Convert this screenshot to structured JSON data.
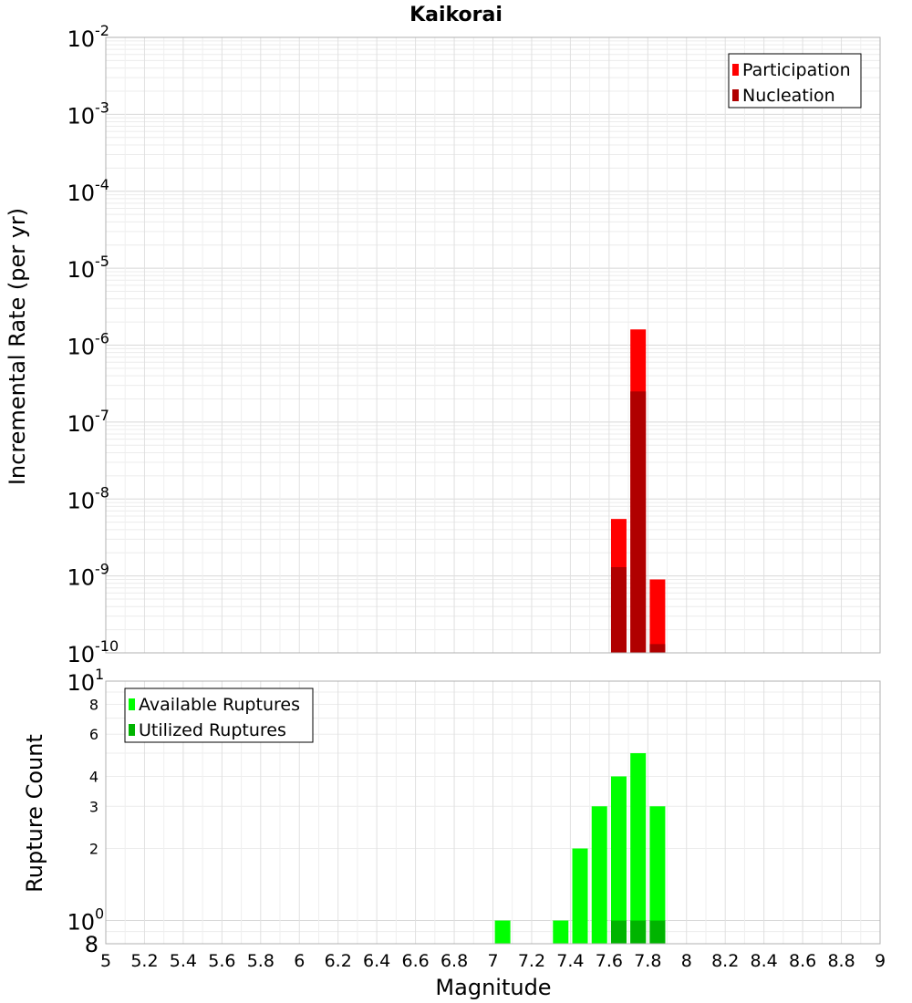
{
  "chart_data": [
    {
      "type": "bar",
      "title": "Kaikorai",
      "xlabel": "",
      "ylabel": "Incremental Rate (per yr)",
      "yscale": "log",
      "xlim": [
        5,
        9
      ],
      "ylim": [
        1e-10,
        0.01
      ],
      "y_major_ticks": [
        {
          "base": "10",
          "exp": "-10"
        },
        {
          "base": "10",
          "exp": "-9"
        },
        {
          "base": "10",
          "exp": "-8"
        },
        {
          "base": "10",
          "exp": "-7"
        },
        {
          "base": "10",
          "exp": "-6"
        },
        {
          "base": "10",
          "exp": "-5"
        },
        {
          "base": "10",
          "exp": "-4"
        },
        {
          "base": "10",
          "exp": "-3"
        },
        {
          "base": "10",
          "exp": "-2"
        }
      ],
      "grid": true,
      "legend_position": "top-right",
      "series": [
        {
          "name": "Participation",
          "color": "#ff0000",
          "x": [
            7.65,
            7.75,
            7.85
          ],
          "values": [
            5.5e-09,
            1.6e-06,
            9e-10
          ]
        },
        {
          "name": "Nucleation",
          "color": "#b00000",
          "x": [
            7.65,
            7.75,
            7.85
          ],
          "values": [
            1.3e-09,
            2.5e-07,
            1.3e-10
          ]
        }
      ]
    },
    {
      "type": "bar",
      "title": "",
      "xlabel": "Magnitude",
      "ylabel": "Rupture Count",
      "yscale": "log",
      "xlim": [
        5,
        9
      ],
      "ylim": [
        0.8,
        10
      ],
      "x_ticks": [
        "5",
        "5.2",
        "5.4",
        "5.6",
        "5.8",
        "6",
        "6.2",
        "6.4",
        "6.6",
        "6.8",
        "7",
        "7.2",
        "7.4",
        "7.6",
        "7.8",
        "8",
        "8.2",
        "8.4",
        "8.6",
        "8.8",
        "9"
      ],
      "y_major_ticks": [
        {
          "value": 1,
          "base": "10",
          "exp": "0"
        },
        {
          "value": 10,
          "base": "10",
          "exp": "1"
        }
      ],
      "y_minor_ticks": [
        {
          "value": 0.8,
          "label": "8"
        },
        {
          "value": 2,
          "label": "2"
        },
        {
          "value": 3,
          "label": "3"
        },
        {
          "value": 4,
          "label": "4"
        },
        {
          "value": 6,
          "label": "6"
        },
        {
          "value": 8,
          "label": "8"
        }
      ],
      "grid": true,
      "legend_position": "top-left",
      "series": [
        {
          "name": "Available Ruptures",
          "color": "#00ff00",
          "x": [
            7.05,
            7.35,
            7.45,
            7.55,
            7.65,
            7.75,
            7.85
          ],
          "values": [
            1,
            1,
            2,
            3,
            4,
            5,
            3
          ]
        },
        {
          "name": "Utilized Ruptures",
          "color": "#00b400",
          "x": [
            7.65,
            7.75,
            7.85
          ],
          "values": [
            1,
            1,
            1
          ]
        }
      ]
    }
  ]
}
